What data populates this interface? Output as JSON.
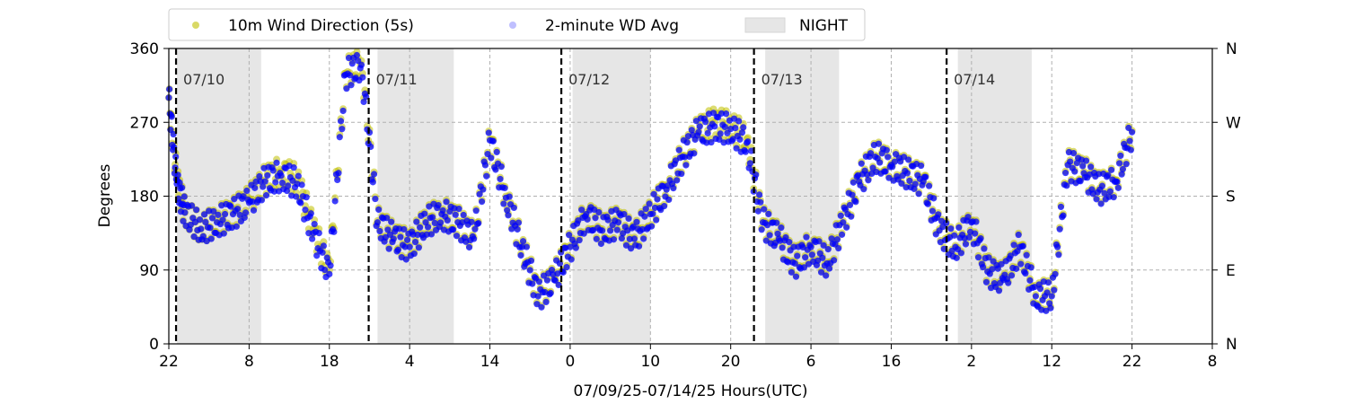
{
  "chart_data": {
    "type": "scatter",
    "xlabel": "07/09/25-07/14/25  Hours(UTC)",
    "ylabel": "Degrees",
    "xlim": [
      0,
      130
    ],
    "ylim": [
      0,
      360
    ],
    "x_ticks": [
      {
        "x": 0,
        "label": "22"
      },
      {
        "x": 10,
        "label": "8"
      },
      {
        "x": 20,
        "label": "18"
      },
      {
        "x": 30,
        "label": "4"
      },
      {
        "x": 40,
        "label": "14"
      },
      {
        "x": 50,
        "label": "0"
      },
      {
        "x": 60,
        "label": "10"
      },
      {
        "x": 70,
        "label": "20"
      },
      {
        "x": 80,
        "label": "6"
      },
      {
        "x": 90,
        "label": "16"
      },
      {
        "x": 100,
        "label": "2"
      },
      {
        "x": 110,
        "label": "12"
      },
      {
        "x": 120,
        "label": "22"
      },
      {
        "x": 130,
        "label": "8"
      }
    ],
    "y_ticks": [
      0,
      90,
      180,
      270,
      360
    ],
    "y2_ticks": [
      {
        "value": 0,
        "label": "N"
      },
      {
        "value": 90,
        "label": "E"
      },
      {
        "value": 180,
        "label": "S"
      },
      {
        "value": 270,
        "label": "W"
      },
      {
        "value": 360,
        "label": "N"
      }
    ],
    "grid": true,
    "legend_position": "top",
    "legend": [
      {
        "label": "10m Wind Direction (5s)",
        "color": "#bfbf00"
      },
      {
        "label": "2-minute WD Avg",
        "color": "#0000ff"
      },
      {
        "label": "NIGHT",
        "color": "#e6e6e6"
      }
    ],
    "night_periods": [
      [
        1,
        11.5
      ],
      [
        26,
        35.5
      ],
      [
        50.3,
        60
      ],
      [
        74.3,
        83.5
      ],
      [
        98.3,
        107.5
      ]
    ],
    "day_boundaries": [
      {
        "x": 0.9,
        "label": "07/10"
      },
      {
        "x": 24.9,
        "label": "07/11"
      },
      {
        "x": 48.9,
        "label": "07/12"
      },
      {
        "x": 72.9,
        "label": "07/13"
      },
      {
        "x": 96.9,
        "label": "07/14"
      }
    ],
    "series": [
      {
        "name": "10m Wind Direction (5s)",
        "color": "#bfbf00",
        "x": [
          0,
          1,
          2,
          4,
          6,
          8,
          10,
          12,
          14,
          16,
          18,
          20,
          22,
          24,
          26,
          28,
          30,
          32,
          34,
          36,
          38,
          40,
          42,
          44,
          46,
          48,
          50,
          52,
          54,
          56,
          58,
          60,
          62,
          64,
          66,
          68,
          70,
          72,
          74,
          76,
          78,
          80,
          82,
          84,
          86,
          88,
          90,
          92,
          94,
          96,
          98,
          100,
          102,
          104,
          106,
          108,
          110,
          112,
          114,
          116,
          118,
          120
        ],
        "y": [
          300,
          200,
          160,
          140,
          150,
          160,
          175,
          200,
          210,
          200,
          140,
          90,
          330,
          345,
          150,
          130,
          120,
          150,
          160,
          150,
          130,
          250,
          180,
          120,
          60,
          80,
          120,
          160,
          140,
          150,
          130,
          160,
          190,
          230,
          260,
          270,
          265,
          250,
          150,
          130,
          100,
          120,
          100,
          150,
          200,
          230,
          220,
          210,
          200,
          140,
          120,
          150,
          90,
          80,
          120,
          60,
          60,
          220,
          210,
          190,
          200,
          260
        ]
      },
      {
        "name": "2-minute WD Avg",
        "color": "#0000ff",
        "x": [
          0,
          1,
          2,
          4,
          6,
          8,
          10,
          12,
          14,
          16,
          18,
          20,
          22,
          24,
          26,
          28,
          30,
          32,
          34,
          36,
          38,
          40,
          42,
          44,
          46,
          48,
          50,
          52,
          54,
          56,
          58,
          60,
          62,
          64,
          66,
          68,
          70,
          72,
          74,
          76,
          78,
          80,
          82,
          84,
          86,
          88,
          90,
          92,
          94,
          96,
          98,
          100,
          102,
          104,
          106,
          108,
          110,
          112,
          114,
          116,
          118,
          120
        ],
        "y": [
          300,
          195,
          160,
          140,
          148,
          158,
          172,
          198,
          205,
          195,
          135,
          85,
          328,
          340,
          148,
          128,
          118,
          148,
          158,
          148,
          128,
          248,
          178,
          118,
          58,
          78,
          118,
          158,
          138,
          148,
          128,
          158,
          188,
          228,
          258,
          265,
          262,
          245,
          148,
          128,
          98,
          118,
          98,
          148,
          198,
          228,
          218,
          208,
          198,
          138,
          118,
          148,
          88,
          78,
          118,
          58,
          58,
          218,
          208,
          188,
          198,
          258
        ]
      }
    ]
  }
}
